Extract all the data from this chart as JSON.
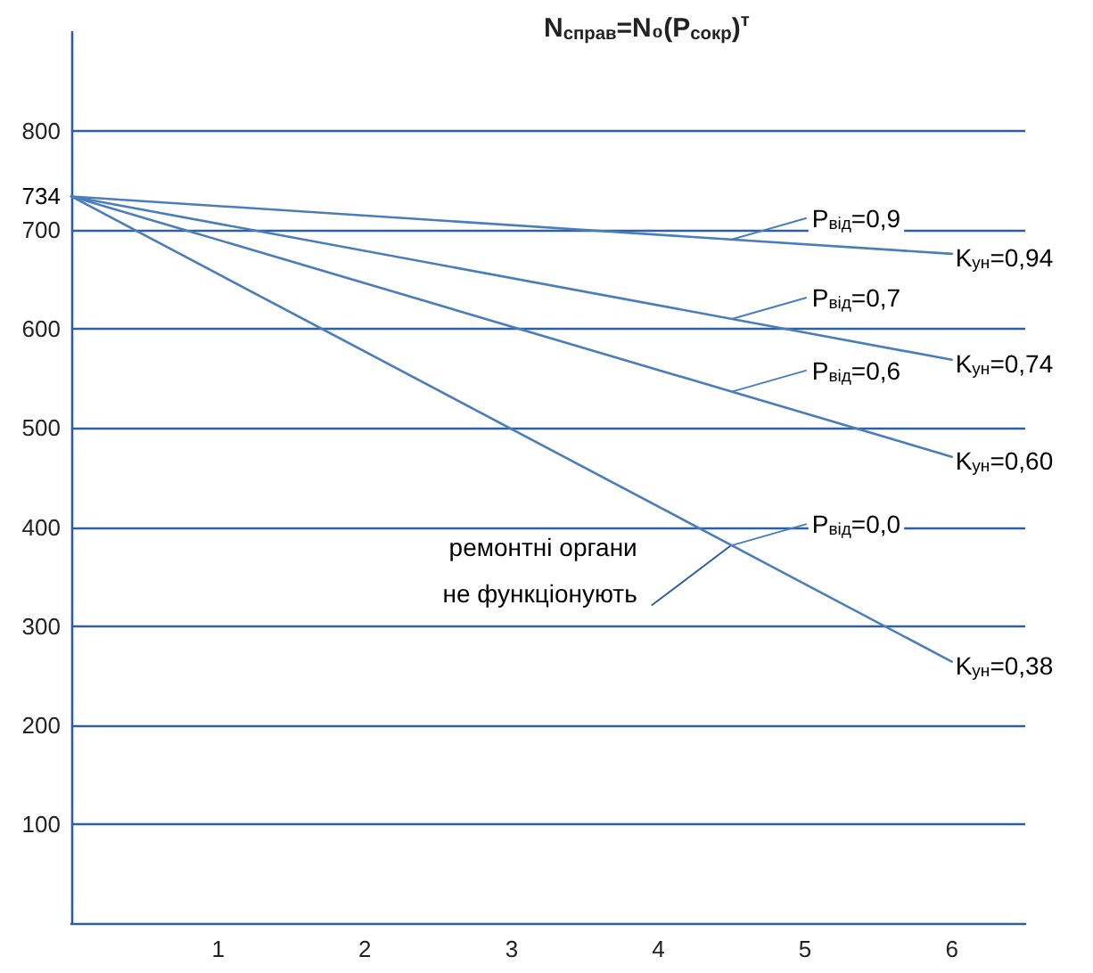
{
  "chart_data": {
    "type": "line",
    "title": "N$_{справ}$=N₀(P$_{сокр}$)$^{т}$",
    "x": [
      0,
      6
    ],
    "series": [
      {
        "name": "P$_{від}$=0,9",
        "color": "#4a7ebb",
        "values": [
          734,
          676
        ]
      },
      {
        "name": "P$_{від}$=0,7",
        "color": "#4a7ebb",
        "values": [
          734,
          569
        ]
      },
      {
        "name": "P$_{від}$=0,6",
        "color": "#4a7ebb",
        "values": [
          734,
          471
        ]
      },
      {
        "name": "P$_{від}$=0,0",
        "color": "#4a7ebb",
        "values": [
          734,
          264
        ]
      }
    ],
    "annotations": [
      {
        "text": "734",
        "x": 0,
        "y": 734
      },
      {
        "text": "K$_{ун}$=0,94",
        "x": 6,
        "y": 676
      },
      {
        "text": "K$_{ун}$=0,74",
        "x": 6,
        "y": 569
      },
      {
        "text": "K$_{ун}$=0,60",
        "x": 6,
        "y": 471
      },
      {
        "text": "K$_{ун}$=0,38",
        "x": 6,
        "y": 264
      },
      {
        "text": "ремонтні органи\nне функціонують",
        "x": 4.5,
        "y": 382
      }
    ],
    "xlim": [
      0,
      6.5
    ],
    "xticks": [
      1,
      2,
      3,
      4,
      5,
      6
    ],
    "ylim": [
      0,
      900
    ],
    "yticks": [
      100,
      200,
      300,
      400,
      500,
      600,
      700,
      800
    ],
    "grid": "y",
    "legend": "right",
    "marker": "none",
    "line_style": "solid"
  }
}
